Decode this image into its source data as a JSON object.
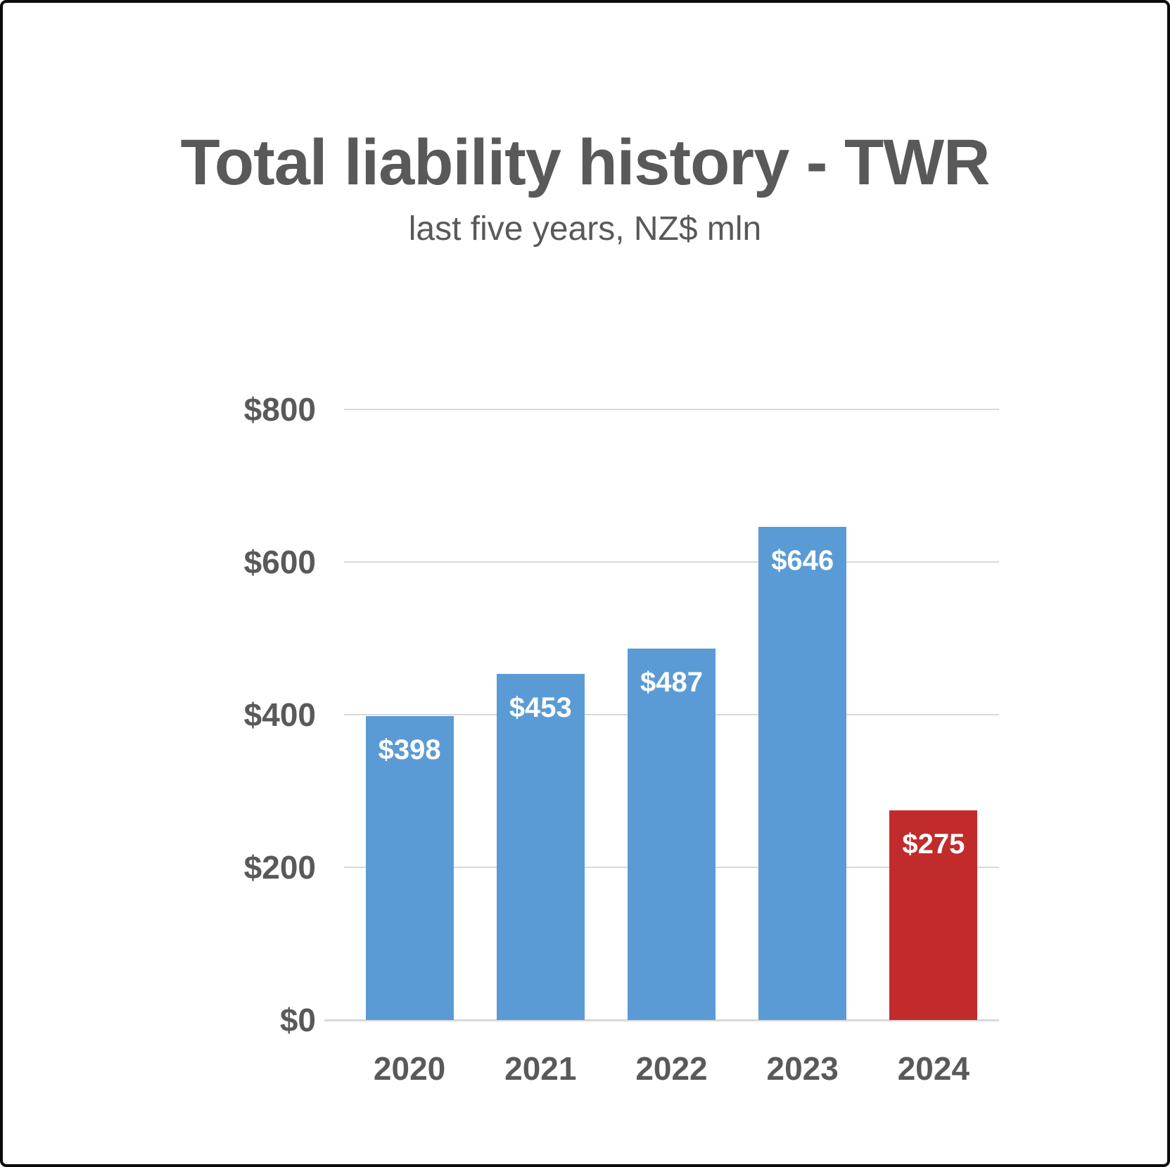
{
  "header": {
    "title": "Total liability history - TWR",
    "subtitle": "last five years, NZ$ mln"
  },
  "chart_data": {
    "type": "bar",
    "title": "Total liability history - TWR",
    "subtitle": "last five years, NZ$ mln",
    "categories": [
      "2020",
      "2021",
      "2022",
      "2023",
      "2024"
    ],
    "values": [
      398,
      453,
      487,
      646,
      275
    ],
    "data_labels": [
      "$398",
      "$453",
      "$487",
      "$646",
      "$275"
    ],
    "bar_colors": [
      "#5B9BD5",
      "#5B9BD5",
      "#5B9BD5",
      "#5B9BD5",
      "#C22B2B"
    ],
    "ylim": [
      0,
      800
    ],
    "ytick_step": 200,
    "ytick_labels": [
      "$0",
      "$200",
      "$400",
      "$600",
      "$800"
    ],
    "grid": true,
    "legend": "none",
    "colors": {
      "bar_blue": "#5B9BD5",
      "bar_red": "#C22B2B",
      "gridline": "#D9D9D9",
      "axis_text": "#595959",
      "value_label_text": "#FFFFFF",
      "frame_border": "#0B0B0B",
      "background": "#FFFFFF"
    }
  }
}
